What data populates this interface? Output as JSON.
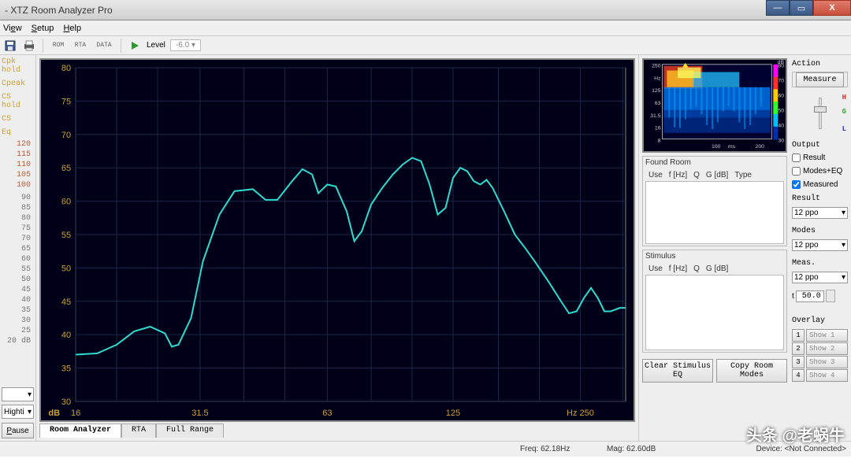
{
  "window": {
    "title": "- XTZ Room Analyzer Pro"
  },
  "menu": {
    "items": [
      "View",
      "Setup",
      "Help"
    ],
    "accel": [
      "V",
      "S",
      "H"
    ]
  },
  "toolbar": {
    "rom": "ROM",
    "rta": "RTA",
    "data": "DATA",
    "level_label": "Level",
    "level_value": "-6.0"
  },
  "left": {
    "labels": [
      "Cpk hold",
      "Cpeak",
      "CS hold",
      "CS",
      "Eq"
    ],
    "nums1": [
      "120",
      "115",
      "110",
      "105",
      "100"
    ],
    "nums2": [
      "90",
      "85",
      "80",
      "75",
      "70",
      "65",
      "60",
      "55",
      "50",
      "45",
      "40",
      "35",
      "30",
      "25",
      "20 dB"
    ],
    "combo1": "",
    "combo2": "Highti",
    "pause": "Pause"
  },
  "chart": {
    "type": "line",
    "bg": "#000018",
    "grid": "#1a2845",
    "axis_label": "dB",
    "line_color": "#2ddbcf",
    "yticks": [
      30,
      35,
      40,
      45,
      50,
      55,
      60,
      65,
      70,
      75,
      80
    ],
    "ylim": [
      30,
      80
    ],
    "xticks": [
      16,
      31.5,
      63,
      125,
      250
    ],
    "xticks_label": [
      "16",
      "31.5",
      "63",
      "125",
      "Hz      250"
    ],
    "xlim_log": [
      16,
      320
    ],
    "series": [
      [
        16,
        37
      ],
      [
        18,
        37.2
      ],
      [
        20,
        38.5
      ],
      [
        22,
        40.5
      ],
      [
        24,
        41.2
      ],
      [
        26,
        40.2
      ],
      [
        27,
        38.2
      ],
      [
        28,
        38.5
      ],
      [
        30,
        42.5
      ],
      [
        32,
        51
      ],
      [
        35,
        58
      ],
      [
        38,
        61.5
      ],
      [
        42,
        61.8
      ],
      [
        45,
        60.2
      ],
      [
        48,
        60.2
      ],
      [
        52,
        63
      ],
      [
        55,
        64.8
      ],
      [
        58,
        64
      ],
      [
        60,
        61.2
      ],
      [
        63,
        62.5
      ],
      [
        66,
        62.2
      ],
      [
        70,
        58.5
      ],
      [
        73,
        54
      ],
      [
        76,
        55.5
      ],
      [
        80,
        59.5
      ],
      [
        85,
        62
      ],
      [
        90,
        64
      ],
      [
        95,
        65.5
      ],
      [
        100,
        66.5
      ],
      [
        105,
        66
      ],
      [
        110,
        62.5
      ],
      [
        115,
        58
      ],
      [
        120,
        59
      ],
      [
        125,
        63.5
      ],
      [
        130,
        65
      ],
      [
        135,
        64.5
      ],
      [
        140,
        63
      ],
      [
        145,
        62.5
      ],
      [
        150,
        63.2
      ],
      [
        155,
        62
      ],
      [
        165,
        58.5
      ],
      [
        175,
        55
      ],
      [
        185,
        53
      ],
      [
        195,
        51
      ],
      [
        210,
        48
      ],
      [
        225,
        45
      ],
      [
        235,
        43.2
      ],
      [
        245,
        43.5
      ],
      [
        255,
        45.5
      ],
      [
        265,
        47
      ],
      [
        275,
        45.5
      ],
      [
        285,
        43.5
      ],
      [
        295,
        43.5
      ],
      [
        310,
        44
      ],
      [
        320,
        44
      ]
    ]
  },
  "tabs": {
    "items": [
      "Room Analyzer",
      "RTA",
      "Full Range"
    ],
    "active": 0
  },
  "spectrogram": {
    "ylabels": [
      "250",
      "Hz",
      "125",
      "63",
      "31.5",
      "16",
      "8"
    ],
    "xlabel": "ms",
    "xticks": [
      "100",
      "200"
    ],
    "scale_label": "dB",
    "scale": [
      "80",
      "70",
      "60",
      "50",
      "40",
      "30"
    ],
    "scale_colors": [
      "#ff00ff",
      "#ff3030",
      "#ffcc00",
      "#30ff30",
      "#00c0ff",
      "#0030b0",
      "#000060"
    ]
  },
  "found_room": {
    "title": "Found Room",
    "cols": [
      "Use",
      "f [Hz]",
      "Q",
      "G [dB]",
      "Type"
    ]
  },
  "stimulus": {
    "title": "Stimulus",
    "cols": [
      "Use",
      "f [Hz]",
      "Q",
      "G [dB]"
    ]
  },
  "buttons": {
    "clear": "Clear Stimulus EQ",
    "copy": "Copy Room Modes"
  },
  "action": {
    "title": "Action",
    "measure": "Measure",
    "slider": {
      "H": "H",
      "G": "G",
      "L": "L"
    },
    "output": "Output",
    "chk_result": "Result",
    "chk_modeseq": "Modes+EQ",
    "chk_measured": "Measured",
    "result": "Result",
    "modes": "Modes",
    "meas": "Meas.",
    "ppo": "12 ppo",
    "ppo2": "12 ppo",
    "ppo3": "12 ppo",
    "t_label": "t",
    "t_val": "50.0",
    "overlay": "Overlay",
    "ov": [
      "Show 1",
      "Show 2",
      "Show 3",
      "Show 4"
    ]
  },
  "status": {
    "freq": "Freq: 62.18Hz",
    "mag": "Mag: 62.60dB",
    "device": "Device: <Not Connected>"
  },
  "watermark": "头条 @老蜗牛"
}
